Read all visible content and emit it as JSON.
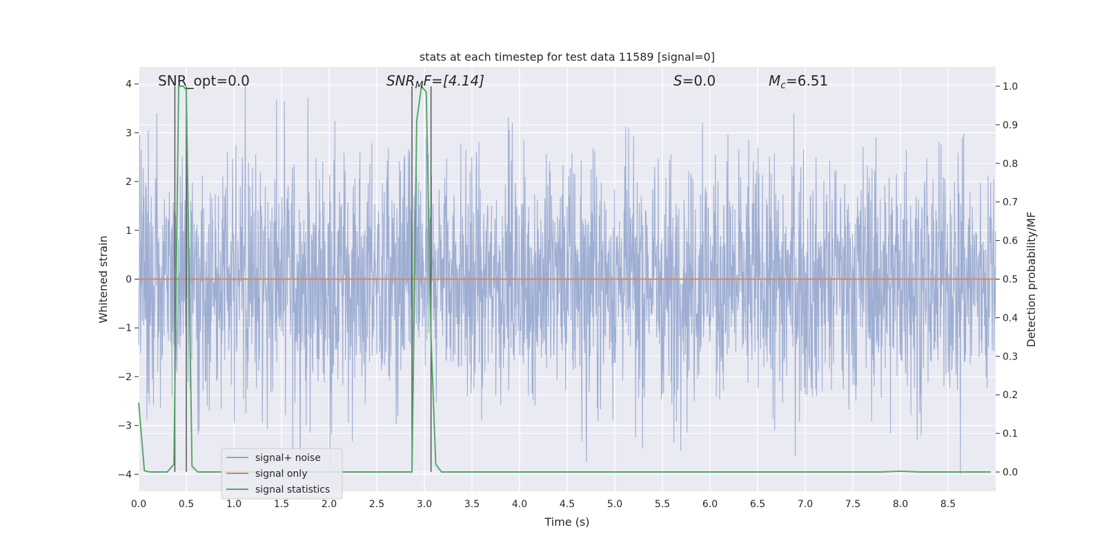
{
  "chart_data": {
    "type": "line",
    "title": "stats at each timestep for test data 11589 [signal=0]",
    "xlabel": "Time (s)",
    "ylabel": "Whitened strain",
    "y2label": "Detection probability/MF",
    "xlim": [
      0.0,
      9.0
    ],
    "ylim": [
      -4.35,
      4.35
    ],
    "y2lim": [
      -0.05,
      1.05
    ],
    "xticks": [
      "0.0",
      "0.5",
      "1.0",
      "1.5",
      "2.0",
      "2.5",
      "3.0",
      "3.5",
      "4.0",
      "4.5",
      "5.0",
      "5.5",
      "6.0",
      "6.5",
      "7.0",
      "7.5",
      "8.0",
      "8.5"
    ],
    "xtick_values": [
      0.0,
      0.5,
      1.0,
      1.5,
      2.0,
      2.5,
      3.0,
      3.5,
      4.0,
      4.5,
      5.0,
      5.5,
      6.0,
      6.5,
      7.0,
      7.5,
      8.0,
      8.5
    ],
    "yticks": [
      "4",
      "3",
      "2",
      "1",
      "0",
      "−1",
      "−2",
      "−3",
      "−4"
    ],
    "ytick_values": [
      4,
      3,
      2,
      1,
      0,
      -1,
      -2,
      -3,
      -4
    ],
    "y2ticks": [
      "1.0",
      "0.9",
      "0.8",
      "0.7",
      "0.6",
      "0.5",
      "0.4",
      "0.3",
      "0.2",
      "0.1",
      "0.0"
    ],
    "y2tick_values": [
      1.0,
      0.9,
      0.8,
      0.7,
      0.6,
      0.5,
      0.4,
      0.3,
      0.2,
      0.1,
      0.0
    ],
    "grid": true,
    "legend_placement": "lower-left",
    "series": [
      {
        "name": "signal+ noise",
        "axis": "left",
        "color": "#8fa3cc",
        "style": "dense noise, envelope approx ±2.3 with peaks to about ±4",
        "peaks": [
          {
            "x": 0.01,
            "y": 2.95
          },
          {
            "x": 0.1,
            "y": 3.05
          },
          {
            "x": 0.11,
            "y": -2.55
          },
          {
            "x": 0.19,
            "y": 3.4
          },
          {
            "x": 0.35,
            "y": -2.4
          },
          {
            "x": 0.72,
            "y": -2.6
          },
          {
            "x": 0.93,
            "y": 2.6
          },
          {
            "x": 1.12,
            "y": 3.95
          },
          {
            "x": 1.3,
            "y": -2.95
          },
          {
            "x": 1.53,
            "y": 3.65
          },
          {
            "x": 1.8,
            "y": -3.15
          },
          {
            "x": 2.38,
            "y": -2.55
          },
          {
            "x": 3.02,
            "y": 2.9
          },
          {
            "x": 3.6,
            "y": -2.9
          },
          {
            "x": 4.7,
            "y": -3.2
          },
          {
            "x": 5.22,
            "y": -3.25
          },
          {
            "x": 5.62,
            "y": -3.35
          },
          {
            "x": 5.92,
            "y": 3.2
          },
          {
            "x": 6.88,
            "y": 3.4
          },
          {
            "x": 6.68,
            "y": -3.1
          },
          {
            "x": 8.06,
            "y": 2.65
          },
          {
            "x": 8.65,
            "y": 2.9
          },
          {
            "x": 8.63,
            "y": -4.0
          }
        ]
      },
      {
        "name": "signal only",
        "axis": "left",
        "color": "#dd8452",
        "x": [
          0.0,
          9.0
        ],
        "y": [
          0.0,
          0.0
        ]
      },
      {
        "name": "signal statistics",
        "axis": "right",
        "color": "#55a868",
        "x": [
          0.0,
          0.06,
          0.12,
          0.3,
          0.37,
          0.42,
          0.47,
          0.5,
          0.56,
          0.62,
          0.7,
          2.5,
          2.87,
          2.92,
          2.97,
          3.02,
          3.07,
          3.12,
          3.18,
          3.5,
          7.8,
          8.0,
          8.2,
          8.95
        ],
        "y": [
          0.18,
          0.003,
          0.0,
          0.0,
          0.02,
          1.0,
          1.0,
          0.99,
          0.015,
          0.0,
          0.0,
          0.0,
          0.0,
          0.91,
          1.0,
          0.985,
          0.35,
          0.02,
          0.0,
          0.0,
          0.0,
          0.002,
          0.0,
          0.0
        ]
      }
    ],
    "vertical_lines": [
      0.38,
      0.5,
      2.87,
      3.07
    ],
    "vertical_line_color": "#555555",
    "annotations": [
      {
        "text": "SNR_opt=0.0",
        "x": 0.2,
        "y": 3.95
      },
      {
        "text": "SNR_MF=[4.14]",
        "x": 2.6,
        "y": 3.95
      },
      {
        "text": "S=0.0",
        "x": 5.6,
        "y": 3.95
      },
      {
        "text": "M_c=6.51",
        "x": 6.6,
        "y": 3.95
      }
    ]
  },
  "labels": {
    "annot_snr_opt": "SNR_opt=0.0",
    "annot_snr_mf_base": "SNR",
    "annot_snr_mf_sub": "M",
    "annot_snr_mf_rest": "F=[4.14]",
    "annot_s_base": "S",
    "annot_s_rest": "=0.0",
    "annot_mc_base": "M",
    "annot_mc_sub": "c",
    "annot_mc_rest": "=6.51"
  },
  "colors": {
    "axes_bg": "#eaeaf2",
    "grid": "#ffffff",
    "text": "#262626"
  }
}
